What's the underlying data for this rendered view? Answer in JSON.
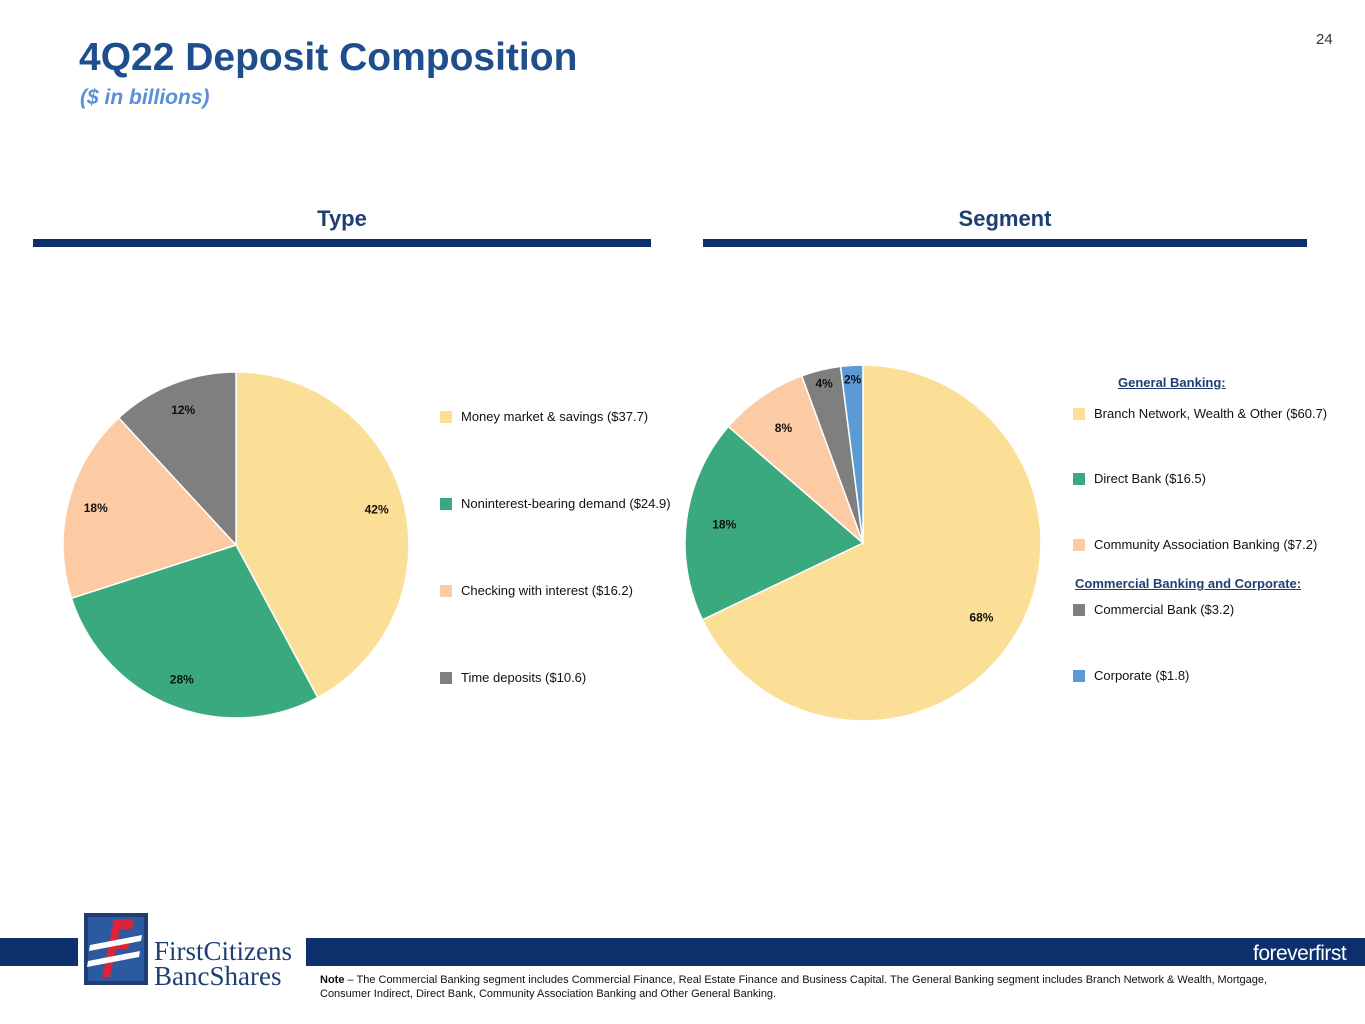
{
  "page": {
    "title": "4Q22 Deposit Composition",
    "subtitle": "($ in billions)",
    "page_number": "24"
  },
  "type_section": {
    "heading": "Type"
  },
  "segment_section": {
    "heading": "Segment",
    "group_general": "General Banking:",
    "group_commercial": "Commercial Banking and Corporate:"
  },
  "footer": {
    "logo_line1": "FirstCitizens",
    "logo_line2": "BancShares",
    "tagline": "foreverfirst",
    "note_label": "Note",
    "note_text": " – The Commercial Banking segment includes Commercial Finance, Real Estate Finance and Business Capital. The General Banking segment includes Branch Network & Wealth, Mortgage, Consumer Indirect, Direct Bank, Community Association Banking and Other General Banking."
  },
  "colors": {
    "yellow": "#fbdf96",
    "green": "#3aaa7e",
    "peach": "#fccba3",
    "gray": "#7f7f7f",
    "blue": "#5b9bd5",
    "navy": "#0d2f6b"
  },
  "chart_data": [
    {
      "type": "pie",
      "title": "Type",
      "units": "$ in billions",
      "slices": [
        {
          "label": "Money market & savings ($37.7)",
          "value": 37.7,
          "pct_label": "42%",
          "color": "#fbdf96"
        },
        {
          "label": "Noninterest-bearing demand ($24.9)",
          "value": 24.9,
          "pct_label": "28%",
          "color": "#3aaa7e"
        },
        {
          "label": "Checking with interest ($16.2)",
          "value": 16.2,
          "pct_label": "18%",
          "color": "#fccba3"
        },
        {
          "label": "Time deposits ($10.6)",
          "value": 10.6,
          "pct_label": "12%",
          "color": "#7f7f7f"
        }
      ],
      "legend_position": "right"
    },
    {
      "type": "pie",
      "title": "Segment",
      "units": "$ in billions",
      "slices": [
        {
          "label": "Branch  Network, Wealth & Other ($60.7)",
          "value": 60.7,
          "pct_label": "68%",
          "color": "#fbdf96",
          "group": "General Banking"
        },
        {
          "label": "Direct Bank ($16.5)",
          "value": 16.5,
          "pct_label": "18%",
          "color": "#3aaa7e",
          "group": "General Banking"
        },
        {
          "label": "Community Association Banking ($7.2)",
          "value": 7.2,
          "pct_label": "8%",
          "color": "#fccba3",
          "group": "General Banking"
        },
        {
          "label": "Commercial Bank ($3.2)",
          "value": 3.2,
          "pct_label": "4%",
          "color": "#7f7f7f",
          "group": "Commercial Banking and Corporate"
        },
        {
          "label": "Corporate ($1.8)",
          "value": 1.8,
          "pct_label": "2%",
          "color": "#5b9bd5",
          "group": "Commercial Banking and Corporate"
        }
      ],
      "legend_position": "right"
    }
  ]
}
